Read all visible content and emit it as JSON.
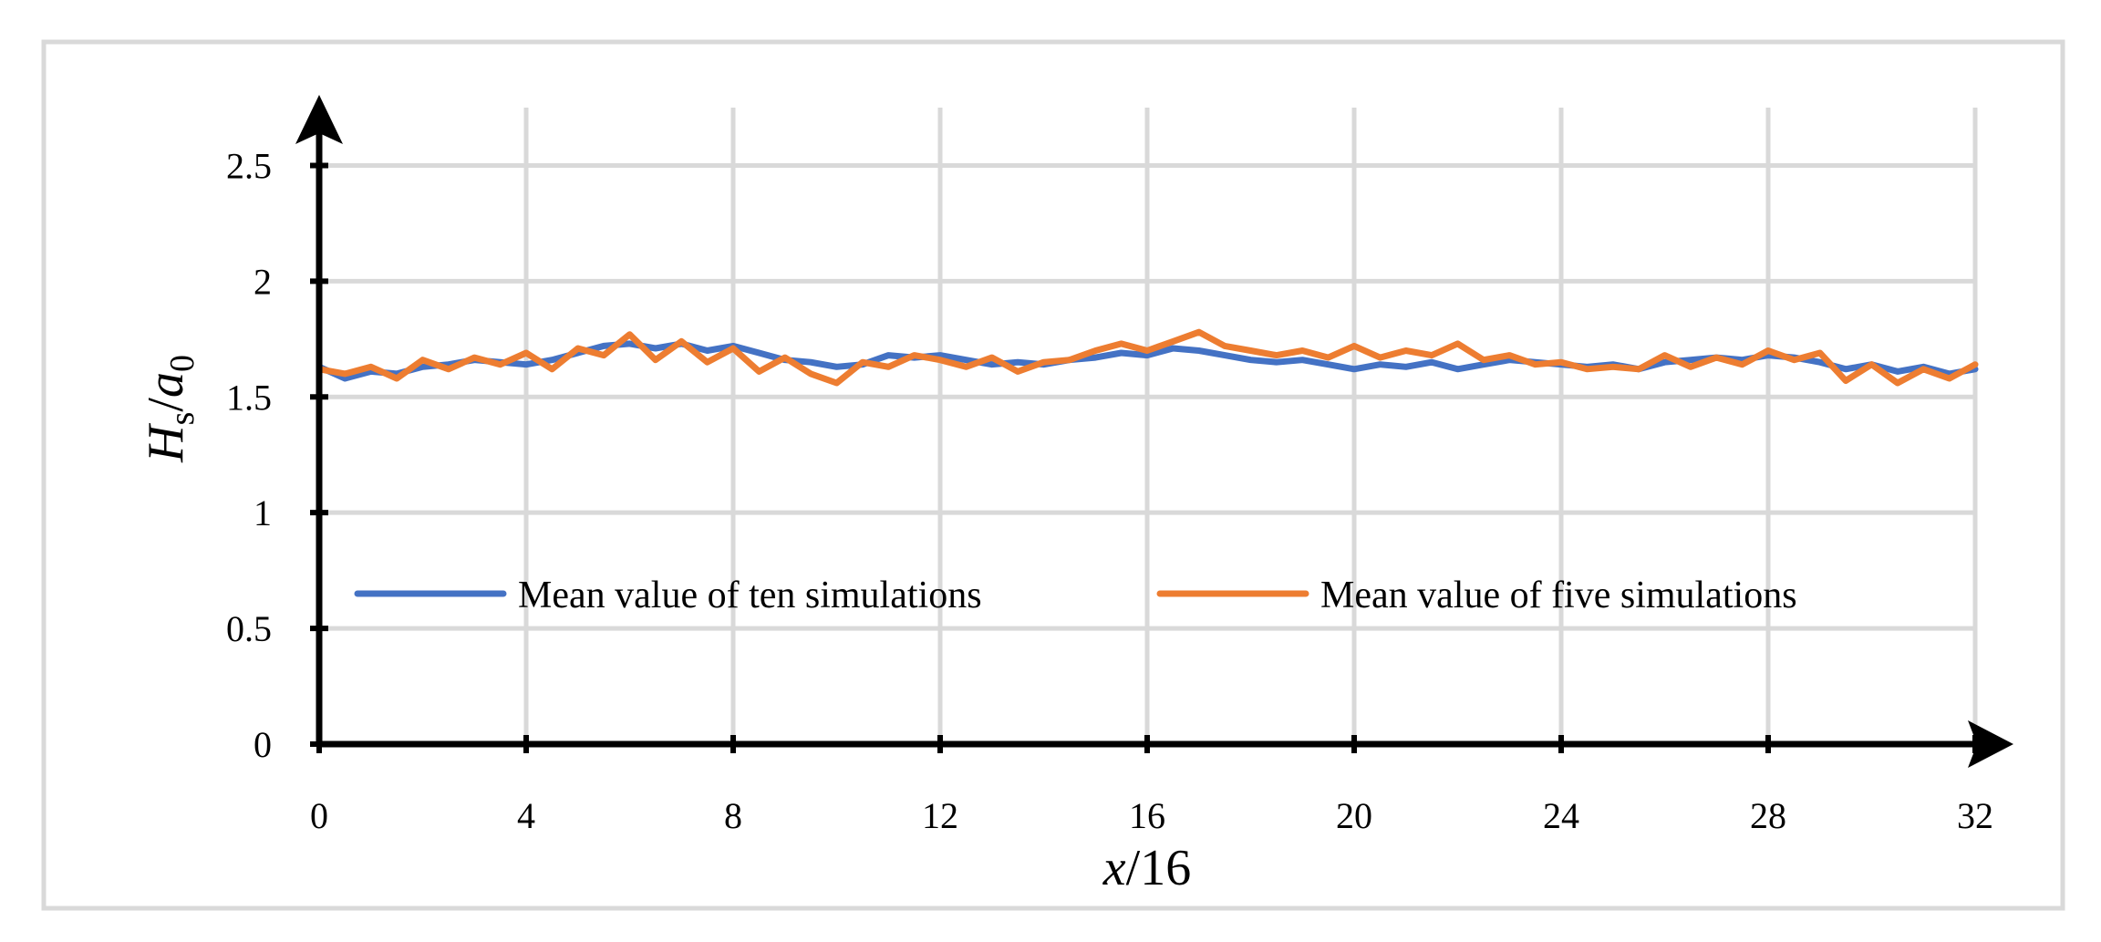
{
  "chart_data": {
    "type": "line",
    "xlabel": {
      "var": "x",
      "rest": "/16"
    },
    "ylabel": {
      "H": "H",
      "H_sub": "s",
      "slash": "/",
      "a": "a",
      "a_sub": "0"
    },
    "xlim": [
      0,
      32
    ],
    "ylim": [
      0,
      2.75
    ],
    "x_ticks": [
      0,
      4,
      8,
      12,
      16,
      20,
      24,
      28,
      32
    ],
    "x_tick_labels": [
      "0",
      "4",
      "8",
      "12",
      "16",
      "20",
      "24",
      "28",
      "32"
    ],
    "y_ticks": [
      0,
      0.5,
      1,
      1.5,
      2,
      2.5
    ],
    "y_tick_labels": [
      "0",
      "0.5",
      "1",
      "1.5",
      "2",
      "2.5"
    ],
    "grid": true,
    "legend_placement": "lower-center",
    "series": [
      {
        "name": "Mean value of ten simulations",
        "color": "#4472C4",
        "x": [
          0,
          0.5,
          1,
          1.5,
          2,
          2.5,
          3,
          3.5,
          4,
          4.5,
          5,
          5.5,
          6,
          6.5,
          7,
          7.5,
          8,
          8.5,
          9,
          9.5,
          10,
          10.5,
          11,
          11.5,
          12,
          12.5,
          13,
          13.5,
          14,
          14.5,
          15,
          15.5,
          16,
          16.5,
          17,
          17.5,
          18,
          18.5,
          19,
          19.5,
          20,
          20.5,
          21,
          21.5,
          22,
          22.5,
          23,
          23.5,
          24,
          24.5,
          25,
          25.5,
          26,
          26.5,
          27,
          27.5,
          28,
          28.5,
          29,
          29.5,
          30,
          30.5,
          31,
          31.5,
          32
        ],
        "y": [
          1.63,
          1.58,
          1.61,
          1.6,
          1.63,
          1.64,
          1.66,
          1.65,
          1.64,
          1.66,
          1.69,
          1.72,
          1.73,
          1.71,
          1.73,
          1.7,
          1.72,
          1.69,
          1.66,
          1.65,
          1.63,
          1.64,
          1.68,
          1.67,
          1.68,
          1.66,
          1.64,
          1.65,
          1.64,
          1.66,
          1.67,
          1.69,
          1.68,
          1.71,
          1.7,
          1.68,
          1.66,
          1.65,
          1.66,
          1.64,
          1.62,
          1.64,
          1.63,
          1.65,
          1.62,
          1.64,
          1.66,
          1.65,
          1.64,
          1.63,
          1.64,
          1.62,
          1.65,
          1.66,
          1.67,
          1.66,
          1.68,
          1.67,
          1.65,
          1.62,
          1.64,
          1.61,
          1.63,
          1.6,
          1.62
        ]
      },
      {
        "name": "Mean value of five simulations",
        "color": "#ED7D31",
        "x": [
          0,
          0.5,
          1,
          1.5,
          2,
          2.5,
          3,
          3.5,
          4,
          4.5,
          5,
          5.5,
          6,
          6.5,
          7,
          7.5,
          8,
          8.5,
          9,
          9.5,
          10,
          10.5,
          11,
          11.5,
          12,
          12.5,
          13,
          13.5,
          14,
          14.5,
          15,
          15.5,
          16,
          16.5,
          17,
          17.5,
          18,
          18.5,
          19,
          19.5,
          20,
          20.5,
          21,
          21.5,
          22,
          22.5,
          23,
          23.5,
          24,
          24.5,
          25,
          25.5,
          26,
          26.5,
          27,
          27.5,
          28,
          28.5,
          29,
          29.5,
          30,
          30.5,
          31,
          31.5,
          32
        ],
        "y": [
          1.62,
          1.6,
          1.63,
          1.58,
          1.66,
          1.62,
          1.67,
          1.64,
          1.69,
          1.62,
          1.71,
          1.68,
          1.77,
          1.66,
          1.74,
          1.65,
          1.71,
          1.61,
          1.67,
          1.6,
          1.56,
          1.65,
          1.63,
          1.68,
          1.66,
          1.63,
          1.67,
          1.61,
          1.65,
          1.66,
          1.7,
          1.73,
          1.7,
          1.74,
          1.78,
          1.72,
          1.7,
          1.68,
          1.7,
          1.67,
          1.72,
          1.67,
          1.7,
          1.68,
          1.73,
          1.66,
          1.68,
          1.64,
          1.65,
          1.62,
          1.63,
          1.62,
          1.68,
          1.63,
          1.67,
          1.64,
          1.7,
          1.66,
          1.69,
          1.57,
          1.64,
          1.56,
          1.62,
          1.58,
          1.64
        ]
      }
    ]
  }
}
